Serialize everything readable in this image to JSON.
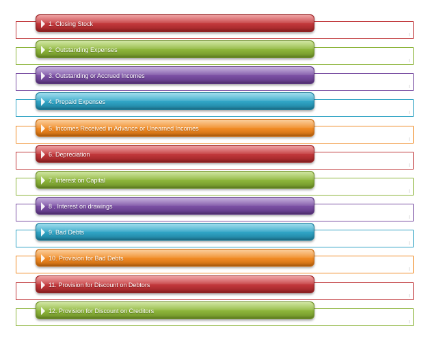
{
  "items": [
    {
      "label": "1. Closing Stock",
      "color": "#c0373a",
      "light": "#e0585a",
      "dark": "#9a2325"
    },
    {
      "label": "2.  Outstanding Expenses",
      "color": "#8cb43a",
      "light": "#a9cf55",
      "dark": "#6e9128"
    },
    {
      "label": "3.  Outstanding or Accrued Incomes",
      "color": "#7a4fa3",
      "light": "#9670bf",
      "dark": "#5c3681"
    },
    {
      "label": "4.  Prepaid Expenses",
      "color": "#2fa3c4",
      "light": "#52c0de",
      "dark": "#1f7f9c"
    },
    {
      "label": "5.  Incomes Received in Advance or Unearned Incomes",
      "color": "#f08a24",
      "light": "#f7a64b",
      "dark": "#c86a10"
    },
    {
      "label": "6.  Depreciation",
      "color": "#c0373a",
      "light": "#e0585a",
      "dark": "#9a2325"
    },
    {
      "label": "7. Interest on Capital",
      "color": "#8cb43a",
      "light": "#a9cf55",
      "dark": "#6e9128"
    },
    {
      "label": "8 . Interest on drawings",
      "color": "#7a4fa3",
      "light": "#9670bf",
      "dark": "#5c3681"
    },
    {
      "label": "9.  Bad Debts",
      "color": "#2fa3c4",
      "light": "#52c0de",
      "dark": "#1f7f9c"
    },
    {
      "label": "10. Provision for Bad Debts",
      "color": "#f08a24",
      "light": "#f7a64b",
      "dark": "#c86a10"
    },
    {
      "label": "11. Provision for Discount on Debtors",
      "color": "#c0373a",
      "light": "#e0585a",
      "dark": "#9a2325"
    },
    {
      "label": "12. Provision for Discount on Creditors",
      "color": "#8cb43a",
      "light": "#a9cf55",
      "dark": "#6e9128"
    }
  ]
}
